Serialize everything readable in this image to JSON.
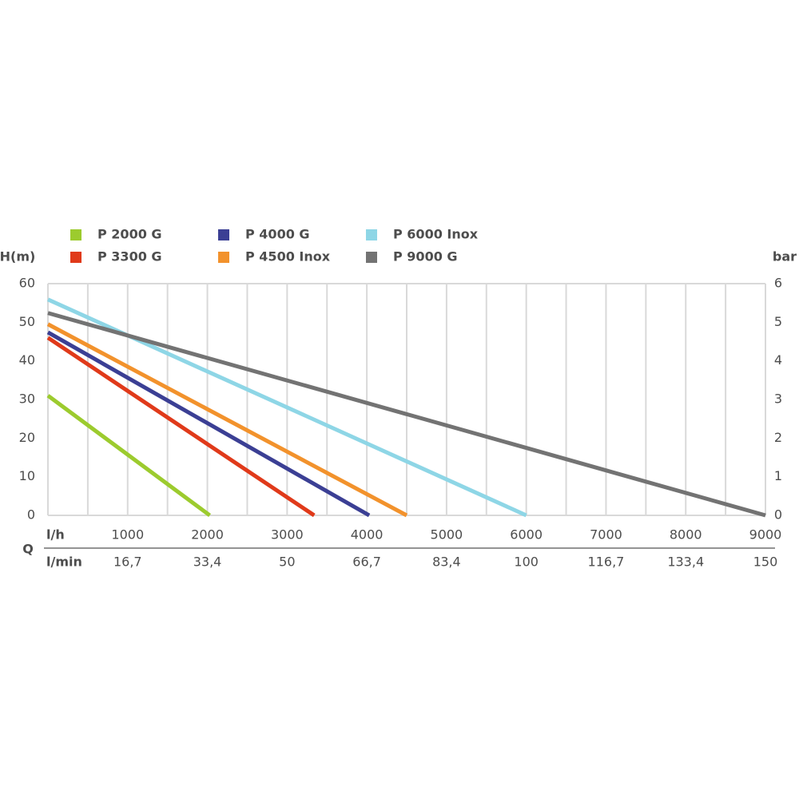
{
  "chart_data": {
    "type": "line",
    "y_label": "H(m)",
    "y2_label": "bar",
    "x_row_label": "l/h",
    "x_axis_label": "Q",
    "x2_row_label": "l/min",
    "x2_labels": [
      "16,7",
      "33,4",
      "50",
      "66,7",
      "83,4",
      "100",
      "116,7",
      "133,4",
      "150"
    ],
    "xlim": [
      0,
      9000
    ],
    "xticks": [
      1000,
      2000,
      3000,
      4000,
      5000,
      6000,
      7000,
      8000,
      9000
    ],
    "ylim": [
      0,
      60
    ],
    "yticks": [
      0,
      10,
      20,
      30,
      40,
      50,
      60
    ],
    "y2lim": [
      0,
      6
    ],
    "y2ticks": [
      0,
      1,
      2,
      3,
      4,
      5,
      6
    ],
    "grid": true,
    "series": [
      {
        "name": "P 2000 G",
        "color": "#9ccb2e",
        "x": [
          0,
          2030
        ],
        "values": [
          31,
          0
        ]
      },
      {
        "name": "P 3300 G",
        "color": "#e03a1a",
        "x": [
          0,
          3340
        ],
        "values": [
          46,
          0
        ]
      },
      {
        "name": "P 4000 G",
        "color": "#3b3f94",
        "x": [
          0,
          4030
        ],
        "values": [
          47.4,
          0
        ]
      },
      {
        "name": "P 4500 Inox",
        "color": "#f2922c",
        "x": [
          0,
          4500
        ],
        "values": [
          49.5,
          0
        ]
      },
      {
        "name": "P 6000 Inox",
        "color": "#8ed6e6",
        "x": [
          0,
          6000
        ],
        "values": [
          55.9,
          0
        ]
      },
      {
        "name": "P 9000 G",
        "color": "#737373",
        "x": [
          0,
          9000
        ],
        "values": [
          52.4,
          0
        ]
      }
    ]
  }
}
